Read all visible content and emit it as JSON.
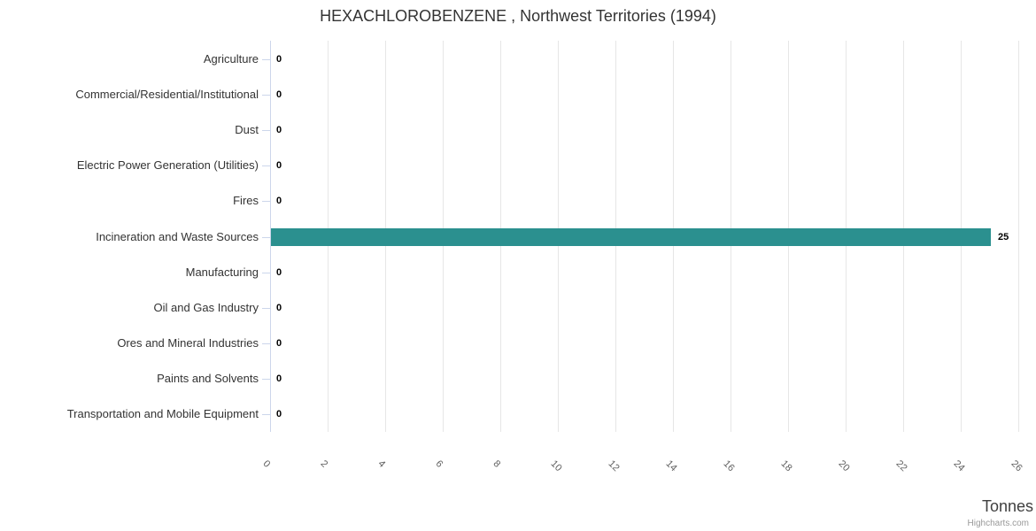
{
  "chart_data": {
    "type": "bar",
    "orientation": "horizontal",
    "title": "HEXACHLOROBENZENE , Northwest Territories (1994)",
    "categories": [
      "Agriculture",
      "Commercial/Residential/Institutional",
      "Dust",
      "Electric Power Generation (Utilities)",
      "Fires",
      "Incineration and Waste Sources",
      "Manufacturing",
      "Oil and Gas Industry",
      "Ores and Mineral Industries",
      "Paints and Solvents",
      "Transportation and Mobile Equipment"
    ],
    "values": [
      0,
      0,
      0,
      0,
      0,
      25,
      0,
      0,
      0,
      0,
      0
    ],
    "data_labels": [
      "0",
      "0",
      "0",
      "0",
      "0",
      "25",
      "0",
      "0",
      "0",
      "0",
      "0"
    ],
    "xlabel": "Tonnes",
    "value_axis": {
      "min": 0,
      "max": 26,
      "tick_interval": 2,
      "tick_labels": [
        "0",
        "2",
        "4",
        "6",
        "8",
        "10",
        "12",
        "14",
        "16",
        "18",
        "20",
        "22",
        "24",
        "26"
      ],
      "label_rotation_deg": 45
    },
    "legend": "none",
    "grid": "vertical-gridlines"
  },
  "credits": {
    "label": "Highcharts.com"
  },
  "colors": {
    "bar": "#2b908f",
    "gridline": "#e6e6e6",
    "axis_line": "#ccd6eb",
    "category_tick": "#ccd6eb",
    "title_text": "#333333",
    "category_label": "#333333",
    "value_tick_label": "#606060",
    "data_label": "#000000",
    "axis_title_text": "#3f3f3f",
    "credits_text": "#999999"
  }
}
